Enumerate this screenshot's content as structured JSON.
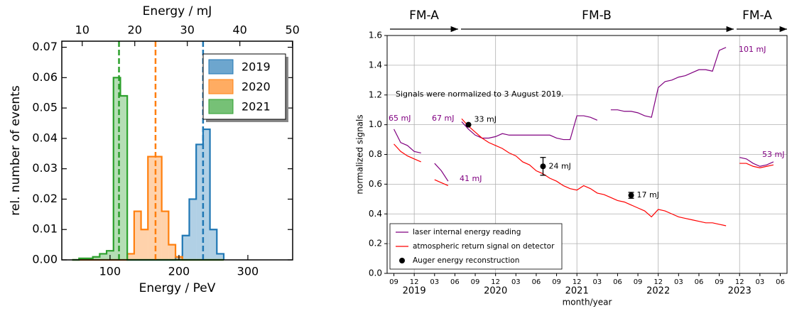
{
  "chart_data": [
    {
      "type": "histogram",
      "xlabel": "Energy / PeV",
      "x2label": "Energy / mJ",
      "ylabel": "rel. number of events",
      "bins": [
        45,
        55,
        65,
        75,
        85,
        95,
        105,
        115,
        125,
        135,
        145,
        155,
        165,
        175,
        185,
        195,
        205,
        215,
        225,
        235,
        245,
        255,
        265
      ],
      "series": [
        {
          "name": "2019",
          "color": "#1f77b4",
          "mean": 235,
          "values": [
            0,
            0,
            0,
            0,
            0,
            0,
            0,
            0,
            0,
            0,
            0,
            0,
            0,
            0,
            0,
            0.001,
            0.008,
            0.02,
            0.038,
            0.043,
            0.01,
            0.002
          ]
        },
        {
          "name": "2020",
          "color": "#ff7f0e",
          "mean": 166,
          "values": [
            0,
            0,
            0,
            0,
            0,
            0,
            0,
            0,
            0.002,
            0.016,
            0.01,
            0.034,
            0.034,
            0.016,
            0.005,
            0.001,
            0,
            0,
            0,
            0,
            0,
            0
          ]
        },
        {
          "name": "2021",
          "color": "#2ca02c",
          "mean": 113,
          "values": [
            0,
            0.0005,
            0.0005,
            0.001,
            0.002,
            0.003,
            0.06,
            0.054,
            0,
            0,
            0,
            0,
            0,
            0,
            0,
            0,
            0,
            0,
            0,
            0,
            0,
            0
          ]
        }
      ],
      "xlim": [
        30,
        365
      ],
      "xticks": [
        100,
        200,
        300
      ],
      "x2lim": [
        6.11,
        50.05
      ],
      "x2ticks": [
        10,
        20,
        30,
        40,
        50
      ],
      "ylim": [
        0,
        0.072
      ],
      "yticks": [
        {
          "value": 0,
          "label": "0.00"
        },
        0.01,
        0.02,
        0.03,
        0.04,
        0.05,
        0.06,
        0.07
      ],
      "legend": "upper right"
    },
    {
      "type": "line",
      "xlabel": "month/year",
      "ylabel": "normalized signals",
      "periods": [
        "FM-A",
        "FM-B",
        "FM-A"
      ],
      "note": "Signals were normalized to 3 August 2019.",
      "annotations": [
        "65 mJ",
        "67 mJ",
        "41 mJ",
        "101 mJ",
        "53 mJ"
      ],
      "x": [
        "2019-09",
        "2019-10",
        "2019-11",
        "2019-12",
        "2020-01",
        "2020-02",
        "2020-03",
        "2020-04",
        "2020-05",
        "2020-06",
        "2020-07",
        "2020-08",
        "2020-09",
        "2020-10",
        "2020-11",
        "2020-12",
        "2021-01",
        "2021-02",
        "2021-03",
        "2021-04",
        "2021-05",
        "2021-06",
        "2021-07",
        "2021-08",
        "2021-09",
        "2021-10",
        "2021-11",
        "2021-12",
        "2022-01",
        "2022-02",
        "2022-03",
        "2022-04",
        "2022-05",
        "2022-06",
        "2022-07",
        "2022-08",
        "2022-09",
        "2022-10",
        "2022-11",
        "2022-12",
        "2023-01",
        "2023-02",
        "2023-03",
        "2023-04",
        "2023-05",
        "2023-06",
        "2023-07",
        "2023-08",
        "2023-09",
        "2023-10",
        "2023-11",
        "2023-12",
        "2024-01",
        "2024-02",
        "2024-03",
        "2024-04",
        "2024-05"
      ],
      "series": [
        {
          "name": "laser internal energy reading",
          "color": "#800080",
          "values": [
            0.97,
            0.88,
            0.86,
            0.82,
            0.81,
            null,
            0.74,
            0.69,
            0.62,
            null,
            1.02,
            0.97,
            0.93,
            0.91,
            0.91,
            0.92,
            0.94,
            0.93,
            0.93,
            0.93,
            0.93,
            0.93,
            0.93,
            0.93,
            0.91,
            0.9,
            0.9,
            1.06,
            1.06,
            1.05,
            1.03,
            null,
            1.1,
            1.1,
            1.09,
            1.09,
            1.08,
            1.06,
            1.05,
            1.25,
            1.29,
            1.3,
            1.32,
            1.33,
            1.35,
            1.37,
            1.37,
            1.36,
            1.5,
            1.52,
            null,
            0.78,
            0.77,
            0.74,
            0.72,
            0.73,
            0.75
          ]
        },
        {
          "name": "atmospheric return signal on detector",
          "color": "#ff0000",
          "values": [
            0.87,
            0.82,
            0.79,
            0.77,
            0.75,
            null,
            0.63,
            0.61,
            0.59,
            null,
            1.04,
            0.99,
            0.95,
            0.91,
            0.88,
            0.86,
            0.84,
            0.81,
            0.79,
            0.75,
            0.73,
            0.69,
            0.67,
            0.64,
            0.62,
            0.59,
            0.57,
            0.56,
            0.59,
            0.57,
            0.54,
            0.53,
            0.51,
            0.49,
            0.48,
            0.46,
            0.44,
            0.42,
            0.38,
            0.43,
            0.42,
            0.4,
            0.38,
            0.37,
            0.36,
            0.35,
            0.34,
            0.34,
            0.33,
            0.32,
            null,
            0.74,
            0.74,
            0.72,
            0.71,
            0.72,
            0.73
          ]
        }
      ],
      "points": {
        "name": "Auger energy reconstruction",
        "color": "#000000",
        "x": [
          "2020-08",
          "2021-07",
          "2022-08"
        ],
        "values": [
          1.0,
          0.72,
          0.525
        ],
        "errors": [
          0,
          0.06,
          0.02
        ],
        "labels": [
          "33 mJ",
          "24 mJ",
          "17 mJ"
        ]
      },
      "xlim": [
        "2019-08",
        "2024-07"
      ],
      "xticks": [
        {
          "value": "2019-09",
          "label": "09"
        },
        {
          "value": "2019-12",
          "label": "12"
        },
        {
          "value": "2020-03",
          "label": "03"
        },
        {
          "value": "2020-06",
          "label": "06"
        },
        {
          "value": "2020-09",
          "label": "09"
        },
        {
          "value": "2020-12",
          "label": "12"
        },
        {
          "value": "2021-03",
          "label": "03"
        },
        {
          "value": "2021-06",
          "label": "06"
        },
        {
          "value": "2021-09",
          "label": "09"
        },
        {
          "value": "2021-12",
          "label": "12"
        },
        {
          "value": "2022-03",
          "label": "03"
        },
        {
          "value": "2022-06",
          "label": "06"
        },
        {
          "value": "2022-09",
          "label": "09"
        },
        {
          "value": "2022-12",
          "label": "12"
        },
        {
          "value": "2023-03",
          "label": "03"
        },
        {
          "value": "2023-06",
          "label": "06"
        },
        {
          "value": "2023-09",
          "label": "09"
        },
        {
          "value": "2023-12",
          "label": "12"
        },
        {
          "value": "2024-03",
          "label": "03"
        },
        {
          "value": "2024-06",
          "label": "06"
        }
      ],
      "year_labels": [
        {
          "value": "2019-12",
          "label": "2019"
        },
        {
          "value": "2020-12",
          "label": "2020"
        },
        {
          "value": "2021-12",
          "label": "2021"
        },
        {
          "value": "2022-12",
          "label": "2022"
        },
        {
          "value": "2023-12",
          "label": "2023"
        }
      ],
      "ylim": [
        0,
        1.6
      ],
      "yticks": [
        {
          "value": 0,
          "label": "0.0"
        },
        0.2,
        0.4,
        0.6,
        0.8,
        {
          "value": 1,
          "label": "1.0"
        },
        1.2,
        1.4,
        1.6
      ],
      "grid": true,
      "legend": "lower left"
    }
  ]
}
